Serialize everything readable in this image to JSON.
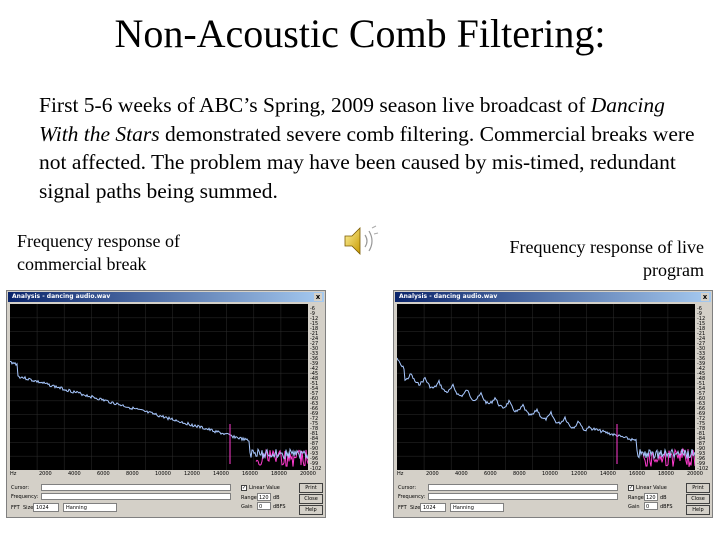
{
  "slide": {
    "title": "Non-Acoustic Comb Filtering:",
    "paragraph": {
      "part1": "First 5-6 weeks of ABC’s Spring, 2009 season live broadcast of ",
      "italic": "Dancing With the Stars",
      "part2": " demonstrated severe comb filtering. Commercial breaks were not affected. The problem may have been caused by mis-timed, redundant signal paths being summed."
    },
    "caption_left": "Frequency response of commercial break",
    "caption_right": "Frequency response of live program"
  },
  "icons": {
    "speaker": "speaker-sound-icon"
  },
  "analysis_window": {
    "title": "Analysis - dancing audio.wav",
    "close_label": "x",
    "y_ticks": [
      "-6",
      "-9",
      "-12",
      "-15",
      "-18",
      "-21",
      "-24",
      "-27",
      "-30",
      "-33",
      "-36",
      "-39",
      "-42",
      "-45",
      "-48",
      "-51",
      "-54",
      "-57",
      "-60",
      "-63",
      "-66",
      "-69",
      "-72",
      "-75",
      "-78",
      "-81",
      "-84",
      "-87",
      "-90",
      "-93",
      "-96",
      "-99",
      "-102"
    ],
    "x_ticks": [
      "Hz",
      "2000",
      "4000",
      "6000",
      "8000",
      "10000",
      "12000",
      "14000",
      "16000",
      "18000",
      "20000"
    ],
    "cursor_label": "Cursor:",
    "frequency_label": "Frequency:",
    "fft_label": "FFT",
    "size_label": "Size:",
    "size_value": "1024",
    "window_value": "Hanning",
    "linear_label": "Linear",
    "linear_value_label": "Linear Value",
    "range_label": "Range",
    "range_value": "120",
    "range_unit": "dB",
    "gain_label": "Gain",
    "gain_value": "0",
    "gain_unit": "dBFS",
    "buttons": {
      "print": "Print",
      "close": "Close",
      "help": "Help"
    }
  },
  "colors": {
    "plot_bg": "#000000",
    "trace": "#a8c8ff",
    "noise": "#ff3ccf",
    "grid": "#2e2e2e"
  }
}
